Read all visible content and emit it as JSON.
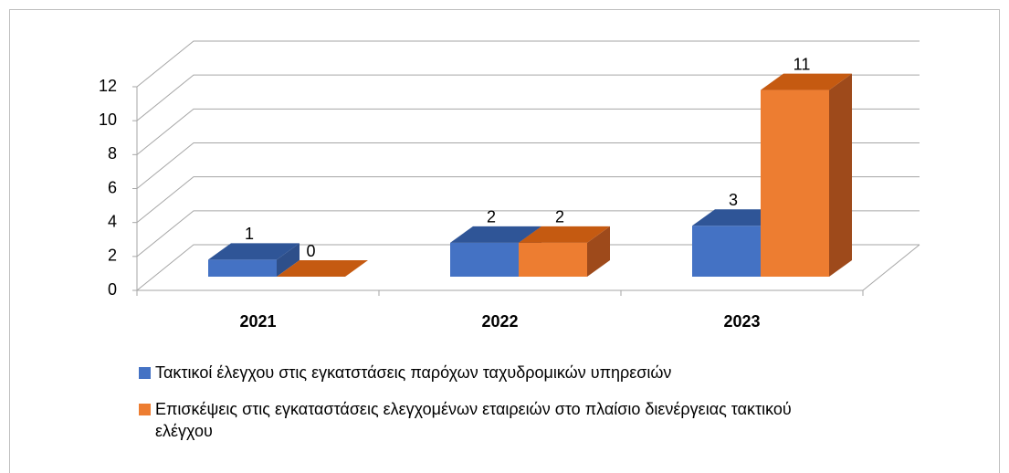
{
  "chart_data": {
    "type": "bar3d",
    "categories": [
      "2021",
      "2022",
      "2023"
    ],
    "series": [
      {
        "name": "Τακτικοί έλεγχου στις εγκατστάσεις παρόχων ταχυδρομικών υπηρεσιών",
        "color": "#4472c4",
        "values": [
          1,
          2,
          3
        ]
      },
      {
        "name": "Επισκέψεις στις εγκαταστάσεις ελεγχομένων εταιρειών στο πλαίσιο διενέργειας τακτικού ελέγχου",
        "color": "#ed7d31",
        "values": [
          0,
          2,
          11
        ]
      }
    ],
    "ylim": [
      0,
      12
    ],
    "yticks": [
      0,
      2,
      4,
      6,
      8,
      10,
      12
    ],
    "grid": true,
    "legend": "bottom"
  }
}
